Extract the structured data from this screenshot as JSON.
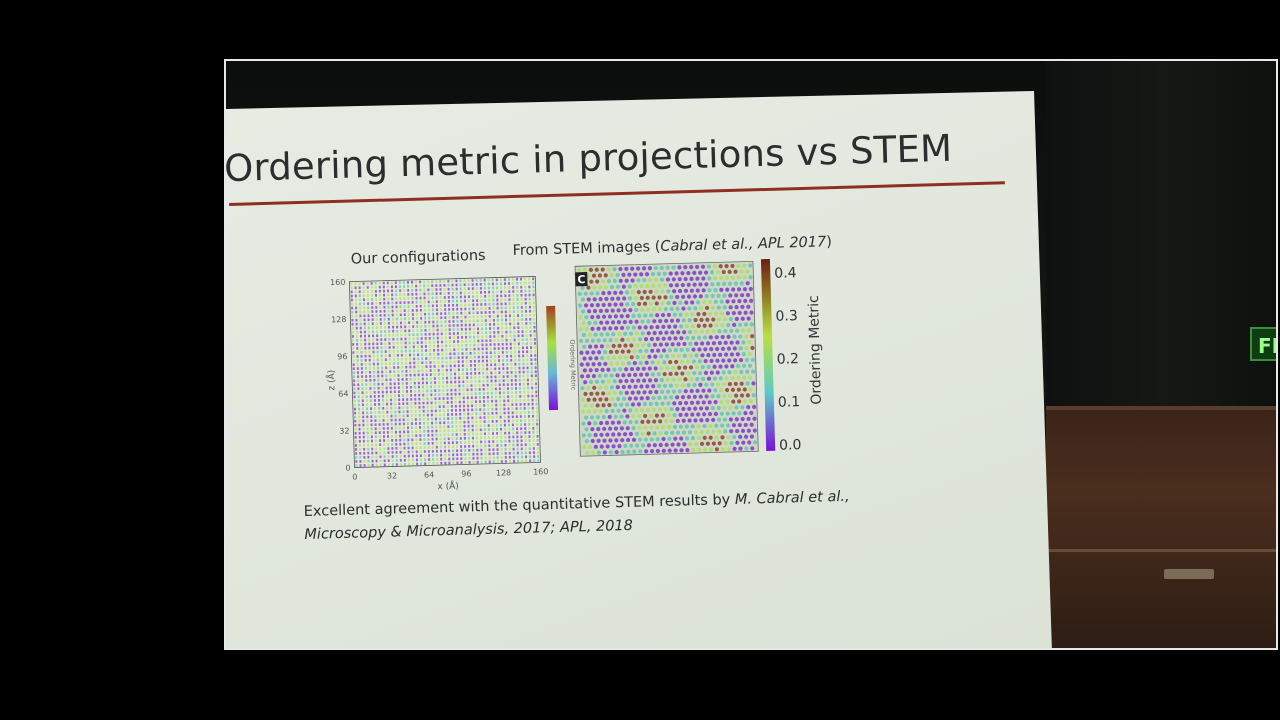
{
  "slide": {
    "title": "Ordering metric in projections vs STEM",
    "caption_left": "Our configurations",
    "caption_right_prefix": "From STEM images (",
    "caption_right_citation": "Cabral et al., APL 2017",
    "caption_right_suffix": ")",
    "panel_label": "C",
    "body_line1_prefix": "Excellent agreement with the quantitative STEM results by ",
    "body_line1_author": "M. Cabral et al.,",
    "body_line2": "Microscopy & Microanalysis, 2017; APL, 2018"
  },
  "plot_left": {
    "xlabel": "x (Å)",
    "ylabel": "z (Å)",
    "x_ticks": [
      "0",
      "32",
      "64",
      "96",
      "128",
      "160"
    ],
    "y_ticks": [
      "0",
      "32",
      "64",
      "96",
      "128",
      "160"
    ],
    "colorbar_label": "Ordering Metric"
  },
  "plot_right": {
    "colorbar_ticks": [
      "0.4",
      "0.3",
      "0.2",
      "0.1",
      "0.0"
    ],
    "colorbar_label": "Ordering Metric"
  },
  "colors": {
    "title_rule": "#8f2f22",
    "purple": "#7a2bd0",
    "green": "#a8e05a",
    "teal": "#58c4b0",
    "brown": "#8a3a20"
  },
  "room": {
    "exit_sign": "FI"
  }
}
